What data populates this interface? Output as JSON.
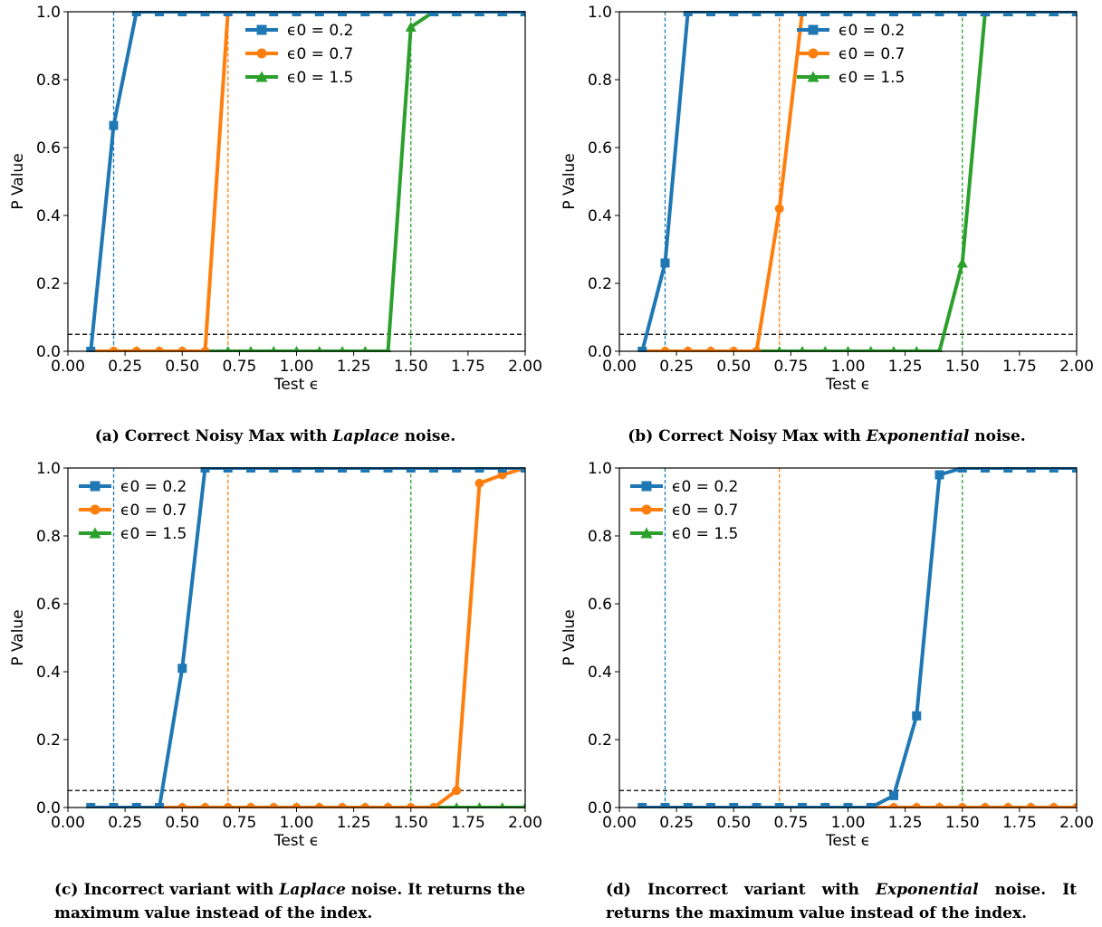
{
  "colors": {
    "blue": "#1f77b4",
    "orange": "#ff7f0e",
    "green": "#2ca02c"
  },
  "chart_data": [
    {
      "id": "a",
      "type": "line",
      "xlabel": "Test ϵ",
      "ylabel": "P Value",
      "xlim": [
        0.0,
        2.0
      ],
      "ylim": [
        0.0,
        1.0
      ],
      "xticks": [
        "0.00",
        "0.25",
        "0.50",
        "0.75",
        "1.00",
        "1.25",
        "1.50",
        "1.75",
        "2.00"
      ],
      "yticks": [
        "0.0",
        "0.2",
        "0.4",
        "0.6",
        "0.8",
        "1.0"
      ],
      "threshold": 0.05,
      "legend_loc": "upper-center",
      "x": [
        0.1,
        0.2,
        0.3,
        0.4,
        0.5,
        0.6,
        0.7,
        0.8,
        0.9,
        1.0,
        1.1,
        1.2,
        1.3,
        1.4,
        1.5,
        1.6,
        1.7,
        1.8,
        1.9,
        2.0
      ],
      "series": [
        {
          "name": "ϵ0 = 0.2",
          "eps": 0.2,
          "color": "#1f77b4",
          "marker": "square",
          "values": [
            0.0,
            0.665,
            1.0,
            1.0,
            1.0,
            1.0,
            1.0,
            1.0,
            1.0,
            1.0,
            1.0,
            1.0,
            1.0,
            1.0,
            1.0,
            1.0,
            1.0,
            1.0,
            1.0,
            1.0
          ]
        },
        {
          "name": "ϵ0 = 0.7",
          "eps": 0.7,
          "color": "#ff7f0e",
          "marker": "circle",
          "values": [
            0.0,
            0.0,
            0.0,
            0.0,
            0.0,
            0.0,
            1.0,
            1.0,
            1.0,
            1.0,
            1.0,
            1.0,
            1.0,
            1.0,
            1.0,
            1.0,
            1.0,
            1.0,
            1.0,
            1.0
          ]
        },
        {
          "name": "ϵ0 = 1.5",
          "eps": 1.5,
          "color": "#2ca02c",
          "marker": "triangle",
          "values": [
            0.0,
            0.0,
            0.0,
            0.0,
            0.0,
            0.0,
            0.0,
            0.0,
            0.0,
            0.0,
            0.0,
            0.0,
            0.0,
            0.0,
            0.955,
            1.0,
            1.0,
            1.0,
            1.0,
            1.0
          ]
        }
      ]
    },
    {
      "id": "b",
      "type": "line",
      "xlabel": "Test ϵ",
      "ylabel": "P Value",
      "xlim": [
        0.0,
        2.0
      ],
      "ylim": [
        0.0,
        1.0
      ],
      "xticks": [
        "0.00",
        "0.25",
        "0.50",
        "0.75",
        "1.00",
        "1.25",
        "1.50",
        "1.75",
        "2.00"
      ],
      "yticks": [
        "0.0",
        "0.2",
        "0.4",
        "0.6",
        "0.8",
        "1.0"
      ],
      "threshold": 0.05,
      "legend_loc": "upper-center",
      "x": [
        0.1,
        0.2,
        0.3,
        0.4,
        0.5,
        0.6,
        0.7,
        0.8,
        0.9,
        1.0,
        1.1,
        1.2,
        1.3,
        1.4,
        1.5,
        1.6,
        1.7,
        1.8,
        1.9,
        2.0
      ],
      "series": [
        {
          "name": "ϵ0 = 0.2",
          "eps": 0.2,
          "color": "#1f77b4",
          "marker": "square",
          "values": [
            0.0,
            0.26,
            1.0,
            1.0,
            1.0,
            1.0,
            1.0,
            1.0,
            1.0,
            1.0,
            1.0,
            1.0,
            1.0,
            1.0,
            1.0,
            1.0,
            1.0,
            1.0,
            1.0,
            1.0
          ]
        },
        {
          "name": "ϵ0 = 0.7",
          "eps": 0.7,
          "color": "#ff7f0e",
          "marker": "circle",
          "values": [
            0.0,
            0.0,
            0.0,
            0.0,
            0.0,
            0.0,
            0.42,
            1.0,
            1.0,
            1.0,
            1.0,
            1.0,
            1.0,
            1.0,
            1.0,
            1.0,
            1.0,
            1.0,
            1.0,
            1.0
          ]
        },
        {
          "name": "ϵ0 = 1.5",
          "eps": 1.5,
          "color": "#2ca02c",
          "marker": "triangle",
          "values": [
            0.0,
            0.0,
            0.0,
            0.0,
            0.0,
            0.0,
            0.0,
            0.0,
            0.0,
            0.0,
            0.0,
            0.0,
            0.0,
            0.0,
            0.26,
            1.0,
            1.0,
            1.0,
            1.0,
            1.0
          ]
        }
      ]
    },
    {
      "id": "c",
      "type": "line",
      "xlabel": "Test ϵ",
      "ylabel": "P Value",
      "xlim": [
        0.0,
        2.0
      ],
      "ylim": [
        0.0,
        1.0
      ],
      "xticks": [
        "0.00",
        "0.25",
        "0.50",
        "0.75",
        "1.00",
        "1.25",
        "1.50",
        "1.75",
        "2.00"
      ],
      "yticks": [
        "0.0",
        "0.2",
        "0.4",
        "0.6",
        "0.8",
        "1.0"
      ],
      "threshold": 0.05,
      "legend_loc": "upper-left",
      "x": [
        0.1,
        0.2,
        0.3,
        0.4,
        0.5,
        0.6,
        0.7,
        0.8,
        0.9,
        1.0,
        1.1,
        1.2,
        1.3,
        1.4,
        1.5,
        1.6,
        1.7,
        1.8,
        1.9,
        2.0
      ],
      "series": [
        {
          "name": "ϵ0 = 0.2",
          "eps": 0.2,
          "color": "#1f77b4",
          "marker": "square",
          "values": [
            0.0,
            0.0,
            0.0,
            0.0,
            0.41,
            1.0,
            1.0,
            1.0,
            1.0,
            1.0,
            1.0,
            1.0,
            1.0,
            1.0,
            1.0,
            1.0,
            1.0,
            1.0,
            1.0,
            1.0
          ]
        },
        {
          "name": "ϵ0 = 0.7",
          "eps": 0.7,
          "color": "#ff7f0e",
          "marker": "circle",
          "values": [
            0.0,
            0.0,
            0.0,
            0.0,
            0.0,
            0.0,
            0.0,
            0.0,
            0.0,
            0.0,
            0.0,
            0.0,
            0.0,
            0.0,
            0.0,
            0.0,
            0.05,
            0.955,
            0.98,
            1.0
          ]
        },
        {
          "name": "ϵ0 = 1.5",
          "eps": 1.5,
          "color": "#2ca02c",
          "marker": "triangle",
          "values": [
            0.0,
            0.0,
            0.0,
            0.0,
            0.0,
            0.0,
            0.0,
            0.0,
            0.0,
            0.0,
            0.0,
            0.0,
            0.0,
            0.0,
            0.0,
            0.0,
            0.0,
            0.0,
            0.0,
            0.0
          ]
        }
      ]
    },
    {
      "id": "d",
      "type": "line",
      "xlabel": "Test ϵ",
      "ylabel": "P Value",
      "xlim": [
        0.0,
        2.0
      ],
      "ylim": [
        0.0,
        1.0
      ],
      "xticks": [
        "0.00",
        "0.25",
        "0.50",
        "0.75",
        "1.00",
        "1.25",
        "1.50",
        "1.75",
        "2.00"
      ],
      "yticks": [
        "0.0",
        "0.2",
        "0.4",
        "0.6",
        "0.8",
        "1.0"
      ],
      "threshold": 0.05,
      "legend_loc": "upper-left",
      "x": [
        0.1,
        0.2,
        0.3,
        0.4,
        0.5,
        0.6,
        0.7,
        0.8,
        0.9,
        1.0,
        1.1,
        1.2,
        1.3,
        1.4,
        1.5,
        1.6,
        1.7,
        1.8,
        1.9,
        2.0
      ],
      "series": [
        {
          "name": "ϵ0 = 0.2",
          "eps": 0.2,
          "color": "#1f77b4",
          "marker": "square",
          "values": [
            0.0,
            0.0,
            0.0,
            0.0,
            0.0,
            0.0,
            0.0,
            0.0,
            0.0,
            0.0,
            0.0,
            0.035,
            0.27,
            0.98,
            1.0,
            1.0,
            1.0,
            1.0,
            1.0,
            1.0
          ]
        },
        {
          "name": "ϵ0 = 0.7",
          "eps": 0.7,
          "color": "#ff7f0e",
          "marker": "circle",
          "values": [
            0.0,
            0.0,
            0.0,
            0.0,
            0.0,
            0.0,
            0.0,
            0.0,
            0.0,
            0.0,
            0.0,
            0.0,
            0.0,
            0.0,
            0.0,
            0.0,
            0.0,
            0.0,
            0.0,
            0.0
          ]
        },
        {
          "name": "ϵ0 = 1.5",
          "eps": 1.5,
          "color": "#2ca02c",
          "marker": "triangle",
          "values": [
            0.0,
            0.0,
            0.0,
            0.0,
            0.0,
            0.0,
            0.0,
            0.0,
            0.0,
            0.0,
            0.0,
            0.0,
            0.0,
            0.0,
            0.0,
            0.0,
            0.0,
            0.0,
            0.0,
            0.0
          ]
        }
      ]
    }
  ],
  "captions": {
    "a": {
      "label": "(a) Correct Noisy Max with ",
      "em": "Laplace",
      "rest": " noise."
    },
    "b": {
      "label": "(b) Correct Noisy Max with ",
      "em": "Exponential",
      "rest": " noise."
    },
    "c": {
      "label": "(c) Incorrect variant with ",
      "em": "Laplace",
      "rest": " noise. It returns the maximum value instead of the index."
    },
    "d": {
      "label": "(d) Incorrect variant with ",
      "em": "Exponential",
      "rest": " noise. It returns the maximum value instead of the index."
    }
  }
}
